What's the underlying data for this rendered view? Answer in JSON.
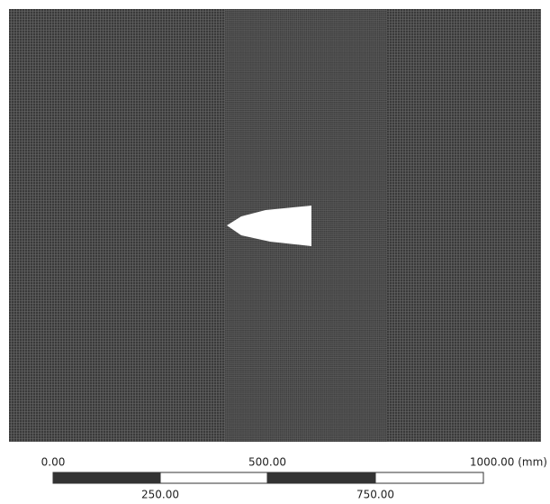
{
  "scale_bar": {
    "top_labels": [
      "0.00",
      "500.00",
      "1000.00 (mm)"
    ],
    "bottom_labels": [
      "250.00",
      "750.00"
    ]
  }
}
